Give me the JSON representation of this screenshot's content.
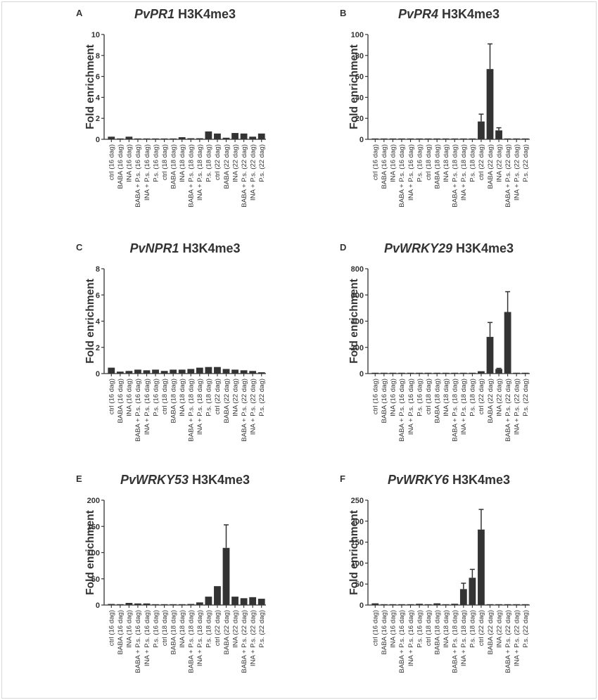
{
  "categories": [
    "ctrl (16 dag)",
    "BABA (16 dag)",
    "INA (16 dag)",
    "BABA + P.s. (16 dag)",
    "INA + P.s. (16 dag)",
    "P.s. (16 dag)",
    "ctrl (18 dag)",
    "BABA (18 dag)",
    "INA (18 dag)",
    "BABA + P.s. (18 dag)",
    "INA + P.s. (18 dag)",
    "P.s. (18 dag)",
    "ctrl (22 dag)",
    "BABA (22 dag)",
    "INA (22 dag)",
    "BABA + P.s. (22 dag)",
    "INA + P.s. (22 dag)",
    "P.s. (22 dag)"
  ],
  "colors": {
    "bar": "#333333",
    "axis": "#333333"
  },
  "chart_data": [
    {
      "type": "bar",
      "letter": "A",
      "gene": "PvPR1",
      "mark": "H3K4me3",
      "ylabel": "Fold enrichment",
      "ylim": [
        0,
        10
      ],
      "ticks": [
        "0",
        "2",
        "4",
        "6",
        "8",
        "10"
      ],
      "values": [
        0.25,
        0.05,
        0.25,
        0.05,
        0.02,
        0.05,
        0.03,
        0.05,
        0.2,
        0.1,
        0.1,
        0.75,
        0.55,
        0.15,
        0.6,
        0.55,
        0.25,
        0.55
      ],
      "errors": [
        null,
        null,
        null,
        null,
        null,
        null,
        null,
        null,
        null,
        null,
        null,
        null,
        null,
        null,
        null,
        null,
        null,
        null
      ]
    },
    {
      "type": "bar",
      "letter": "B",
      "gene": "PvPR4",
      "mark": "H3K4me3",
      "ylabel": "Fold enrichment",
      "ylim": [
        0,
        100
      ],
      "ticks": [
        "0",
        "20",
        "40",
        "60",
        "80",
        "100"
      ],
      "values": [
        0.3,
        0.2,
        0.5,
        0.3,
        0.5,
        0.8,
        0.4,
        0.3,
        0.3,
        0.8,
        0.2,
        0.2,
        17,
        67,
        8.5,
        0.2,
        0.6,
        0.5
      ],
      "errors": [
        null,
        null,
        null,
        null,
        null,
        null,
        null,
        null,
        null,
        null,
        null,
        null,
        7,
        24,
        2.5,
        null,
        null,
        null
      ]
    },
    {
      "type": "bar",
      "letter": "C",
      "gene": "PvNPR1",
      "mark": "H3K4me3",
      "ylabel": "Fold enrichment",
      "ylim": [
        0,
        8
      ],
      "ticks": [
        "0",
        "2",
        "4",
        "6",
        "8"
      ],
      "values": [
        0.45,
        0.15,
        0.2,
        0.3,
        0.25,
        0.3,
        0.2,
        0.3,
        0.3,
        0.35,
        0.45,
        0.5,
        0.5,
        0.35,
        0.3,
        0.25,
        0.2,
        0.1
      ],
      "errors": [
        null,
        null,
        null,
        null,
        null,
        null,
        null,
        null,
        null,
        null,
        null,
        null,
        null,
        null,
        null,
        null,
        null,
        null
      ]
    },
    {
      "type": "bar",
      "letter": "D",
      "gene": "PvWRKY29",
      "mark": "H3K4me3",
      "ylabel": "Fold enrichment",
      "ylim": [
        0,
        800
      ],
      "ticks": [
        "0",
        "200",
        "400",
        "600",
        "800"
      ],
      "values": [
        2,
        0,
        0,
        0,
        0,
        0,
        0,
        0,
        0,
        0,
        2,
        5,
        18,
        280,
        35,
        470,
        2,
        0
      ],
      "errors": [
        null,
        null,
        null,
        null,
        null,
        null,
        null,
        null,
        null,
        null,
        null,
        null,
        null,
        110,
        5,
        155,
        null,
        null
      ]
    },
    {
      "type": "bar",
      "letter": "E",
      "gene": "PvWRKY53",
      "mark": "H3K4me3",
      "ylabel": "Fold enrichment",
      "ylim": [
        0,
        200
      ],
      "ticks": [
        "0",
        "50",
        "100",
        "150",
        "200"
      ],
      "values": [
        2,
        0,
        4,
        3,
        3,
        1,
        0,
        1,
        1,
        2,
        5,
        16,
        36,
        109,
        16,
        13,
        15,
        12
      ],
      "errors": [
        null,
        null,
        null,
        null,
        null,
        null,
        null,
        null,
        null,
        null,
        null,
        null,
        null,
        44,
        null,
        null,
        null,
        null
      ]
    },
    {
      "type": "bar",
      "letter": "F",
      "gene": "PvWRKY6",
      "mark": "H3K4me3",
      "ylabel": "Fold enrichment",
      "ylim": [
        0,
        250
      ],
      "ticks": [
        "0",
        "50",
        "100",
        "150",
        "200",
        "250"
      ],
      "values": [
        4,
        1,
        2,
        1,
        0,
        3,
        1,
        4,
        1,
        3,
        38,
        65,
        180,
        1,
        1,
        0,
        1,
        0
      ],
      "errors": [
        null,
        null,
        null,
        null,
        null,
        null,
        null,
        null,
        null,
        null,
        14,
        20,
        48,
        null,
        null,
        null,
        null,
        null
      ]
    }
  ]
}
